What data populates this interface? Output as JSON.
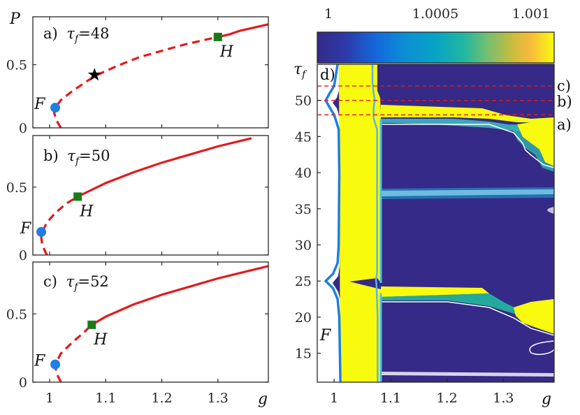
{
  "chart_data": [
    {
      "type": "line",
      "panel_label": "a)",
      "param_symbol": "τ",
      "param_subscript": "f",
      "param_value": "=48",
      "ylabel": "P",
      "xlim": [
        0.97,
        1.39
      ],
      "ylim": [
        0,
        0.88
      ],
      "yticks": [
        "0",
        "0.5"
      ],
      "ytick_values": [
        0,
        0.5
      ],
      "series": [
        {
          "name": "unstable branch",
          "style": "dashed",
          "color": "#e41a1c",
          "x": [
            1.02,
            1.012,
            1.008,
            1.01,
            1.02,
            1.04,
            1.06,
            1.08,
            1.12,
            1.16,
            1.2,
            1.24,
            1.28,
            1.3
          ],
          "y": [
            0.0,
            0.06,
            0.12,
            0.16,
            0.22,
            0.29,
            0.35,
            0.41,
            0.49,
            0.56,
            0.61,
            0.66,
            0.7,
            0.72
          ]
        },
        {
          "name": "stable branch",
          "style": "solid",
          "color": "#e41a1c",
          "x": [
            1.3,
            1.32,
            1.34,
            1.36,
            1.39
          ],
          "y": [
            0.72,
            0.74,
            0.77,
            0.79,
            0.82
          ]
        }
      ],
      "markers": [
        {
          "label": "F",
          "x": 1.01,
          "y": 0.16,
          "shape": "circle",
          "color": "#1e7fe0"
        },
        {
          "label": "H",
          "x": 1.3,
          "y": 0.72,
          "shape": "square",
          "color": "#1a7a1a"
        },
        {
          "label": "",
          "x": 1.08,
          "y": 0.42,
          "shape": "star",
          "color": "#000000"
        }
      ]
    },
    {
      "type": "line",
      "panel_label": "b)",
      "param_symbol": "τ",
      "param_subscript": "f",
      "param_value": "=50",
      "xlim": [
        0.97,
        1.39
      ],
      "ylim": [
        0,
        0.88
      ],
      "yticks": [
        "0",
        "0.5"
      ],
      "ytick_values": [
        0,
        0.5
      ],
      "series": [
        {
          "name": "unstable branch",
          "style": "dashed",
          "color": "#e41a1c",
          "x": [
            0.995,
            0.987,
            0.985,
            0.987,
            0.995,
            1.01,
            1.03,
            1.05
          ],
          "y": [
            0.0,
            0.07,
            0.13,
            0.17,
            0.24,
            0.31,
            0.38,
            0.43
          ]
        },
        {
          "name": "stable branch",
          "style": "solid",
          "color": "#e41a1c",
          "x": [
            1.05,
            1.1,
            1.15,
            1.2,
            1.25,
            1.3,
            1.35,
            1.36
          ],
          "y": [
            0.43,
            0.53,
            0.61,
            0.68,
            0.74,
            0.8,
            0.85,
            0.86
          ]
        }
      ],
      "markers": [
        {
          "label": "F",
          "x": 0.985,
          "y": 0.17,
          "shape": "circle",
          "color": "#1e7fe0"
        },
        {
          "label": "H",
          "x": 1.05,
          "y": 0.43,
          "shape": "square",
          "color": "#1a7a1a"
        }
      ]
    },
    {
      "type": "line",
      "panel_label": "c)",
      "param_symbol": "τ",
      "param_subscript": "f",
      "param_value": "=52",
      "xlim": [
        0.97,
        1.39
      ],
      "ylim": [
        0,
        0.88
      ],
      "yticks": [
        "0",
        "0.5"
      ],
      "ytick_values": [
        0,
        0.5
      ],
      "xticks": [
        "1",
        "1.1",
        "1.2",
        "1.3"
      ],
      "xtick_values": [
        1.0,
        1.1,
        1.2,
        1.3
      ],
      "xlabel": "g",
      "series": [
        {
          "name": "unstable branch",
          "style": "dashed",
          "color": "#e41a1c",
          "x": [
            1.02,
            1.013,
            1.01,
            1.011,
            1.02,
            1.04,
            1.06,
            1.075
          ],
          "y": [
            0.0,
            0.06,
            0.11,
            0.14,
            0.21,
            0.29,
            0.36,
            0.42
          ]
        },
        {
          "name": "stable branch",
          "style": "solid",
          "color": "#e41a1c",
          "x": [
            1.075,
            1.1,
            1.15,
            1.2,
            1.25,
            1.3,
            1.35,
            1.39
          ],
          "y": [
            0.42,
            0.48,
            0.57,
            0.64,
            0.7,
            0.76,
            0.81,
            0.85
          ]
        }
      ],
      "markers": [
        {
          "label": "F",
          "x": 1.01,
          "y": 0.13,
          "shape": "circle",
          "color": "#1e7fe0"
        },
        {
          "label": "H",
          "x": 1.075,
          "y": 0.42,
          "shape": "square",
          "color": "#1a7a1a"
        }
      ]
    },
    {
      "type": "heatmap",
      "panel_label": "d)",
      "colormap": "parula",
      "colorbar_ticks": [
        "1",
        "1.0005",
        "1.001"
      ],
      "colorbar_range": [
        1.0,
        1.001
      ],
      "xlim": [
        0.97,
        1.39
      ],
      "ylim": [
        11,
        55
      ],
      "xticks": [
        "1",
        "1.1",
        "1.2",
        "1.3"
      ],
      "xtick_values": [
        1.0,
        1.1,
        1.2,
        1.3
      ],
      "yticks": [
        "15",
        "20",
        "25",
        "30",
        "35",
        "40",
        "45",
        "50"
      ],
      "ytick_values": [
        15,
        20,
        25,
        30,
        35,
        40,
        45,
        50
      ],
      "xlabel": "g",
      "ylabel_symbol": "τ",
      "ylabel_subscript": "f",
      "curve_label": "F",
      "reference_lines": [
        {
          "label": "a)",
          "tau": 48
        },
        {
          "label": "b)",
          "tau": 50
        },
        {
          "label": "c)",
          "tau": 52
        }
      ],
      "fold_curve": {
        "tau": [
          11,
          20,
          22.5,
          24,
          25,
          26,
          27.5,
          30,
          40,
          46,
          48,
          49,
          50,
          51,
          52,
          55
        ],
        "g": [
          1.011,
          1.009,
          1.006,
          0.998,
          0.985,
          0.998,
          1.006,
          1.008,
          1.009,
          1.008,
          1.0,
          0.992,
          0.985,
          0.992,
          1.0,
          1.006
        ]
      },
      "high_band_right_edge": {
        "tau": [
          11,
          20,
          24.5,
          25.2,
          26,
          46,
          47.5,
          49,
          50,
          51,
          52.5,
          55
        ],
        "g": [
          1.077,
          1.077,
          1.075,
          1.074,
          1.076,
          1.076,
          1.07,
          1.07,
          1.072,
          1.07,
          1.068,
          1.068
        ]
      }
    }
  ]
}
